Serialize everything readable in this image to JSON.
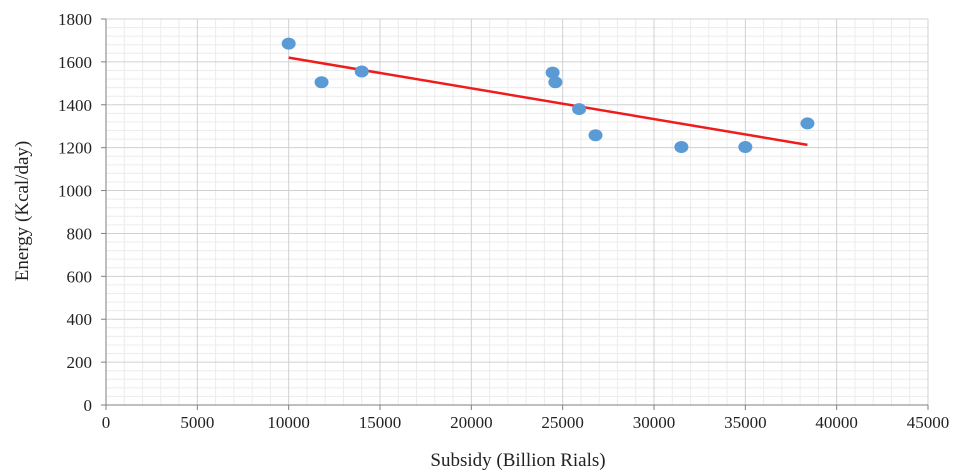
{
  "chart_data": {
    "type": "scatter",
    "title": "",
    "xlabel": "Subsidy (Billion Rials)",
    "ylabel": "Energy (Kcal/day)",
    "xlim": [
      0,
      45000
    ],
    "ylim": [
      0,
      1800
    ],
    "x_ticks": [
      0,
      5000,
      10000,
      15000,
      20000,
      25000,
      30000,
      35000,
      40000,
      45000
    ],
    "y_ticks": [
      0,
      200,
      400,
      600,
      800,
      1000,
      1200,
      1400,
      1600,
      1800
    ],
    "x_tick_labels": [
      "0",
      "5000",
      "10000",
      "15000",
      "20000",
      "25000",
      "30000",
      "35000",
      "40000",
      "45000"
    ],
    "y_tick_labels": [
      "0",
      "200",
      "400",
      "600",
      "800",
      "1000",
      "1200",
      "1400",
      "1600",
      "1800"
    ],
    "grid": true,
    "minor_grid": true,
    "legend": "none",
    "series": [
      {
        "type": "scatter",
        "color": "#5b9bd5",
        "points": [
          {
            "x": 10000,
            "y": 1685
          },
          {
            "x": 11800,
            "y": 1505
          },
          {
            "x": 14000,
            "y": 1555
          },
          {
            "x": 24450,
            "y": 1550
          },
          {
            "x": 24600,
            "y": 1505
          },
          {
            "x": 25900,
            "y": 1380
          },
          {
            "x": 26800,
            "y": 1258
          },
          {
            "x": 31500,
            "y": 1203
          },
          {
            "x": 35000,
            "y": 1203
          },
          {
            "x": 38400,
            "y": 1313
          }
        ]
      },
      {
        "type": "trendline",
        "color": "#ee1c1c",
        "points": [
          {
            "x": 10000,
            "y": 1620
          },
          {
            "x": 38400,
            "y": 1213
          }
        ]
      }
    ]
  }
}
